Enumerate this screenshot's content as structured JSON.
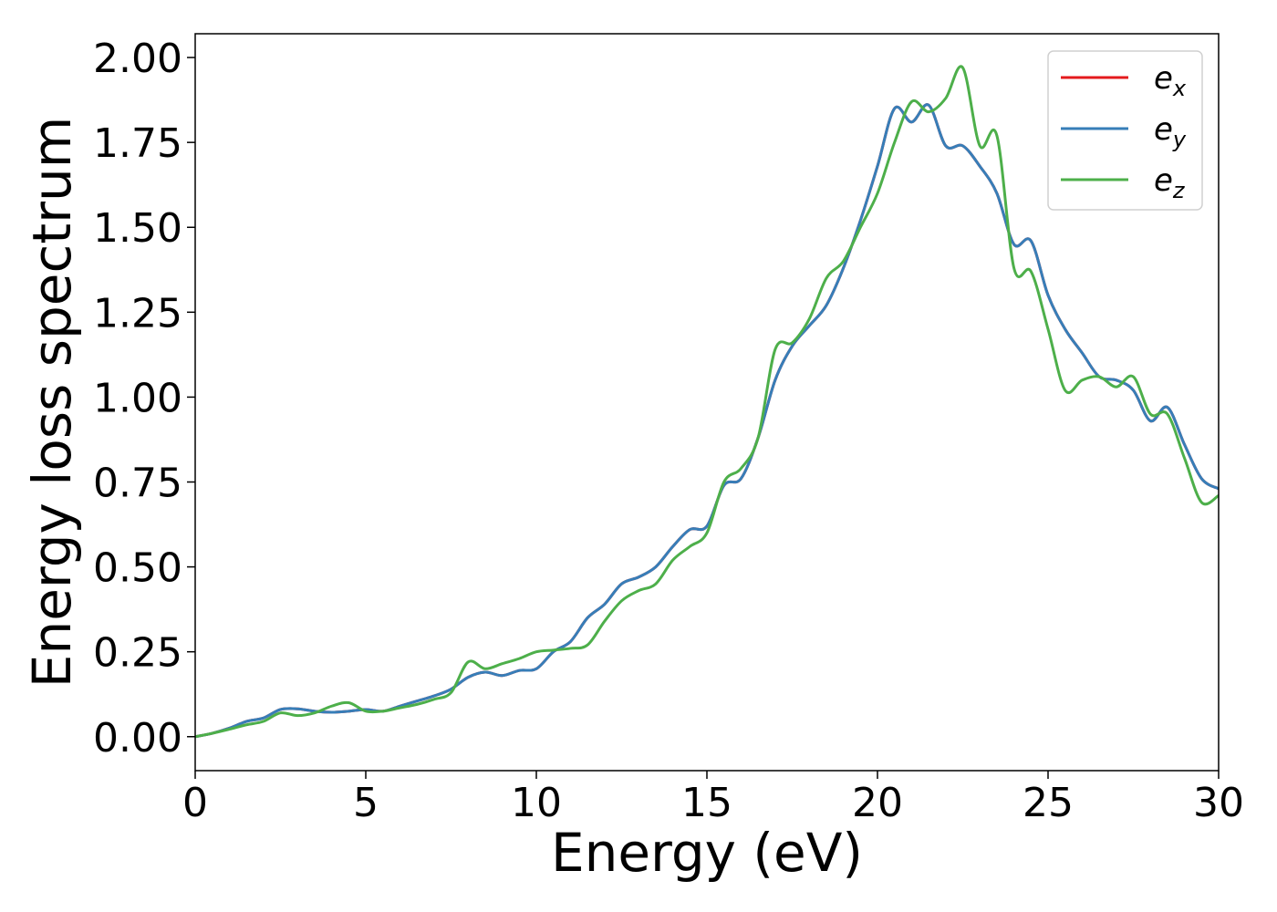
{
  "chart_data": {
    "type": "line",
    "title": "",
    "xlabel": "Energy (eV)",
    "ylabel": "Energy loss spectrum",
    "xlim": [
      0,
      30
    ],
    "ylim": [
      -0.1,
      2.07
    ],
    "xticks": [
      0,
      5,
      10,
      15,
      20,
      25,
      30
    ],
    "xtick_labels": [
      "0",
      "5",
      "10",
      "15",
      "20",
      "25",
      "30"
    ],
    "yticks": [
      0,
      0.25,
      0.5,
      0.75,
      1.0,
      1.25,
      1.5,
      1.75,
      2.0
    ],
    "ytick_labels": [
      "0.00",
      "0.25",
      "0.50",
      "0.75",
      "1.00",
      "1.25",
      "1.50",
      "1.75",
      "2.00"
    ],
    "grid": false,
    "legend_position": "top-right",
    "legend": [
      {
        "base": "e",
        "sub": "x",
        "color": "#e41a1c"
      },
      {
        "base": "e",
        "sub": "y",
        "color": "#377eb8"
      },
      {
        "base": "e",
        "sub": "z",
        "color": "#4daf4a"
      }
    ],
    "x": [
      0,
      0.5,
      1,
      1.5,
      2,
      2.5,
      3,
      3.5,
      4,
      4.5,
      5,
      5.5,
      6,
      6.5,
      7,
      7.5,
      8,
      8.5,
      9,
      9.5,
      10,
      10.5,
      11,
      11.5,
      12,
      12.5,
      13,
      13.5,
      14,
      14.5,
      15,
      15.5,
      16,
      16.5,
      17,
      17.5,
      18,
      18.5,
      19,
      19.5,
      20,
      20.5,
      21,
      21.5,
      22,
      22.5,
      23,
      23.5,
      24,
      24.5,
      25,
      25.5,
      26,
      26.5,
      27,
      27.5,
      28,
      28.5,
      29,
      29.5,
      30
    ],
    "series": [
      {
        "name": "e_x",
        "color": "#e41a1c",
        "values": [
          0.0,
          0.01,
          0.025,
          0.045,
          0.055,
          0.08,
          0.082,
          0.075,
          0.072,
          0.075,
          0.08,
          0.075,
          0.09,
          0.105,
          0.12,
          0.14,
          0.175,
          0.19,
          0.18,
          0.195,
          0.2,
          0.25,
          0.28,
          0.35,
          0.39,
          0.45,
          0.47,
          0.5,
          0.56,
          0.61,
          0.62,
          0.74,
          0.76,
          0.88,
          1.05,
          1.15,
          1.21,
          1.27,
          1.38,
          1.52,
          1.68,
          1.85,
          1.81,
          1.86,
          1.74,
          1.74,
          1.68,
          1.6,
          1.45,
          1.46,
          1.3,
          1.2,
          1.13,
          1.06,
          1.05,
          1.02,
          0.93,
          0.97,
          0.86,
          0.76,
          0.73
        ]
      },
      {
        "name": "e_y",
        "color": "#377eb8",
        "values": [
          0.0,
          0.01,
          0.025,
          0.045,
          0.055,
          0.08,
          0.082,
          0.075,
          0.072,
          0.075,
          0.08,
          0.075,
          0.09,
          0.105,
          0.12,
          0.14,
          0.175,
          0.19,
          0.18,
          0.195,
          0.2,
          0.25,
          0.28,
          0.35,
          0.39,
          0.45,
          0.47,
          0.5,
          0.56,
          0.61,
          0.62,
          0.74,
          0.76,
          0.88,
          1.05,
          1.15,
          1.21,
          1.27,
          1.38,
          1.52,
          1.68,
          1.85,
          1.81,
          1.86,
          1.74,
          1.74,
          1.68,
          1.6,
          1.45,
          1.46,
          1.3,
          1.2,
          1.13,
          1.06,
          1.05,
          1.02,
          0.93,
          0.97,
          0.86,
          0.76,
          0.73
        ]
      },
      {
        "name": "e_z",
        "color": "#4daf4a",
        "values": [
          0.0,
          0.01,
          0.022,
          0.035,
          0.045,
          0.07,
          0.062,
          0.07,
          0.09,
          0.1,
          0.075,
          0.075,
          0.085,
          0.095,
          0.11,
          0.13,
          0.22,
          0.2,
          0.215,
          0.23,
          0.25,
          0.255,
          0.26,
          0.27,
          0.34,
          0.4,
          0.43,
          0.45,
          0.52,
          0.56,
          0.6,
          0.75,
          0.79,
          0.88,
          1.14,
          1.16,
          1.23,
          1.35,
          1.4,
          1.5,
          1.6,
          1.75,
          1.87,
          1.84,
          1.88,
          1.97,
          1.74,
          1.77,
          1.38,
          1.37,
          1.2,
          1.02,
          1.05,
          1.06,
          1.03,
          1.06,
          0.95,
          0.95,
          0.82,
          0.69,
          0.71
        ]
      }
    ]
  }
}
